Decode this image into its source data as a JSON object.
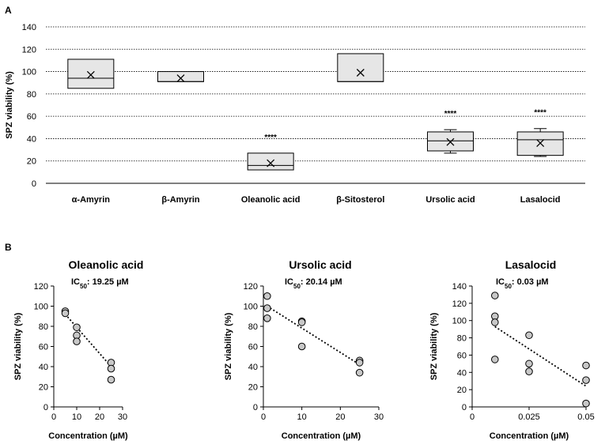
{
  "chart_data": [
    {
      "type": "box",
      "panel_label": "A",
      "ylabel": "SPZ viability (%)",
      "ylim": [
        0,
        140
      ],
      "yticks": [
        "0",
        "20",
        "40",
        "60",
        "80",
        "100",
        "120",
        "140"
      ],
      "grid": true,
      "categories": [
        "α-Amyrin",
        "β-Amyrin",
        "Oleanolic acid",
        "β-Sitosterol",
        "Ursolic acid",
        "Lasalocid"
      ],
      "boxes": [
        {
          "name": "α-Amyrin",
          "min": 85,
          "q1": 85,
          "median": 94,
          "q3": 111,
          "max": 111,
          "mean": 97,
          "significance": ""
        },
        {
          "name": "β-Amyrin",
          "min": 91,
          "q1": 91,
          "median": 91,
          "q3": 100,
          "max": 100,
          "mean": 94,
          "significance": ""
        },
        {
          "name": "Oleanolic acid",
          "min": 12,
          "q1": 12,
          "median": 16,
          "q3": 27,
          "max": 27,
          "mean": 18,
          "significance": "****"
        },
        {
          "name": "β-Sitosterol",
          "min": 91,
          "q1": 91,
          "median": 91,
          "q3": 116,
          "max": 116,
          "mean": 99,
          "significance": ""
        },
        {
          "name": "Ursolic acid",
          "min": 27,
          "q1": 29,
          "median": 38,
          "q3": 46,
          "max": 48,
          "mean": 37,
          "significance": "****"
        },
        {
          "name": "Lasalocid",
          "min": 24,
          "q1": 25,
          "median": 39,
          "q3": 46,
          "max": 49,
          "mean": 36,
          "significance": "****"
        }
      ]
    },
    {
      "type": "scatter",
      "panel_label": "B",
      "title": "Oleanolic acid",
      "ic50_prefix": "IC",
      "ic50_sub": "50",
      "ic50_value": ": 19.25 µM",
      "xlabel": "Concentration (µM)",
      "ylabel": "SPZ viability (%)",
      "xlim": [
        0,
        30
      ],
      "ylim": [
        0,
        120
      ],
      "xticks": [
        "0",
        "10",
        "20",
        "30"
      ],
      "yticks": [
        "0",
        "20",
        "40",
        "60",
        "80",
        "100",
        "120"
      ],
      "points": [
        [
          5,
          95
        ],
        [
          5,
          93
        ],
        [
          10,
          79
        ],
        [
          10,
          71
        ],
        [
          10,
          65
        ],
        [
          25,
          44
        ],
        [
          25,
          38
        ],
        [
          25,
          27
        ]
      ],
      "trendline": [
        [
          5,
          92
        ],
        [
          25,
          40
        ]
      ]
    },
    {
      "type": "scatter",
      "title": "Ursolic acid",
      "ic50_prefix": "IC",
      "ic50_sub": "50",
      "ic50_value": ": 20.14 µM",
      "xlabel": "Concentration (µM)",
      "ylabel": "SPZ viability (%)",
      "xlim": [
        0,
        30
      ],
      "ylim": [
        0,
        120
      ],
      "xticks": [
        "0",
        "10",
        "20",
        "30"
      ],
      "yticks": [
        "0",
        "20",
        "40",
        "60",
        "80",
        "100",
        "120"
      ],
      "points": [
        [
          1,
          110
        ],
        [
          1,
          98
        ],
        [
          1,
          88
        ],
        [
          10,
          85
        ],
        [
          10,
          84
        ],
        [
          10,
          60
        ],
        [
          25,
          46
        ],
        [
          25,
          44
        ],
        [
          25,
          34
        ]
      ],
      "trendline": [
        [
          1,
          100
        ],
        [
          25,
          42
        ]
      ]
    },
    {
      "type": "scatter",
      "title": "Lasalocid",
      "ic50_prefix": "IC",
      "ic50_sub": "50",
      "ic50_value": ": 0.03 µM",
      "xlabel": "Concentration (µM)",
      "ylabel": "SPZ viability (%)",
      "xlim": [
        0,
        0.05
      ],
      "ylim": [
        0,
        140
      ],
      "xticks": [
        "0",
        "0.025",
        "0.05"
      ],
      "xtick_values": [
        0,
        0.025,
        0.05
      ],
      "yticks": [
        "0",
        "20",
        "40",
        "60",
        "80",
        "100",
        "120",
        "140"
      ],
      "points": [
        [
          0.01,
          129
        ],
        [
          0.01,
          105
        ],
        [
          0.01,
          98
        ],
        [
          0.01,
          55
        ],
        [
          0.025,
          83
        ],
        [
          0.025,
          50
        ],
        [
          0.025,
          41
        ],
        [
          0.05,
          48
        ],
        [
          0.05,
          31
        ],
        [
          0.05,
          4
        ]
      ],
      "trendline": [
        [
          0.01,
          93
        ],
        [
          0.05,
          24
        ]
      ]
    }
  ]
}
